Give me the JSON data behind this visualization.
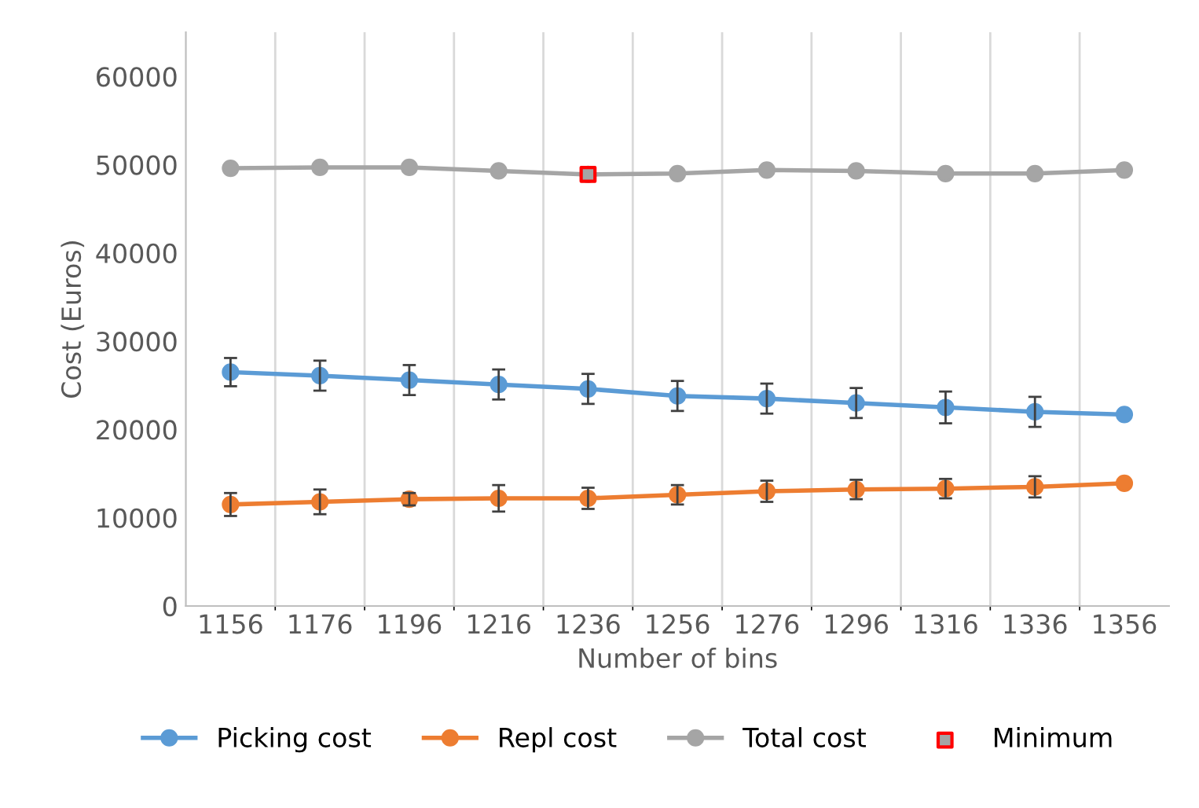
{
  "chart_data": {
    "type": "line",
    "xlabel": "Number of bins",
    "ylabel": "Cost (Euros)",
    "categories": [
      "1156",
      "1176",
      "1196",
      "1216",
      "1236",
      "1256",
      "1276",
      "1296",
      "1316",
      "1336",
      "1356"
    ],
    "series": [
      {
        "name": "Picking cost",
        "color": "#5b9bd5",
        "values": [
          26500,
          26100,
          25600,
          25100,
          24600,
          23800,
          23500,
          23000,
          22500,
          22000,
          21700
        ],
        "errors": [
          1600,
          1700,
          1700,
          1700,
          1700,
          1700,
          1700,
          1700,
          1800,
          1700,
          null
        ]
      },
      {
        "name": "Repl cost",
        "color": "#ed7d31",
        "values": [
          11500,
          11800,
          12100,
          12200,
          12200,
          12600,
          13000,
          13200,
          13300,
          13500,
          13900
        ],
        "errors": [
          1300,
          1400,
          700,
          1500,
          1200,
          1100,
          1200,
          1100,
          1100,
          1200,
          null
        ]
      },
      {
        "name": "Total cost",
        "color": "#a5a5a5",
        "values": [
          49600,
          49700,
          49700,
          49300,
          48900,
          49000,
          49400,
          49300,
          49000,
          49000,
          49400
        ]
      },
      {
        "name": "Minimum",
        "type": "scatter",
        "marker": "square",
        "color": "#ff0000",
        "values": [
          null,
          null,
          null,
          null,
          48900,
          null,
          null,
          null,
          null,
          null,
          null
        ]
      }
    ],
    "ylim": [
      0,
      65000
    ],
    "yticks": [
      0,
      10000,
      20000,
      30000,
      40000,
      50000,
      60000
    ],
    "grid": "x",
    "legend": "bottom",
    "marker": "circle"
  }
}
